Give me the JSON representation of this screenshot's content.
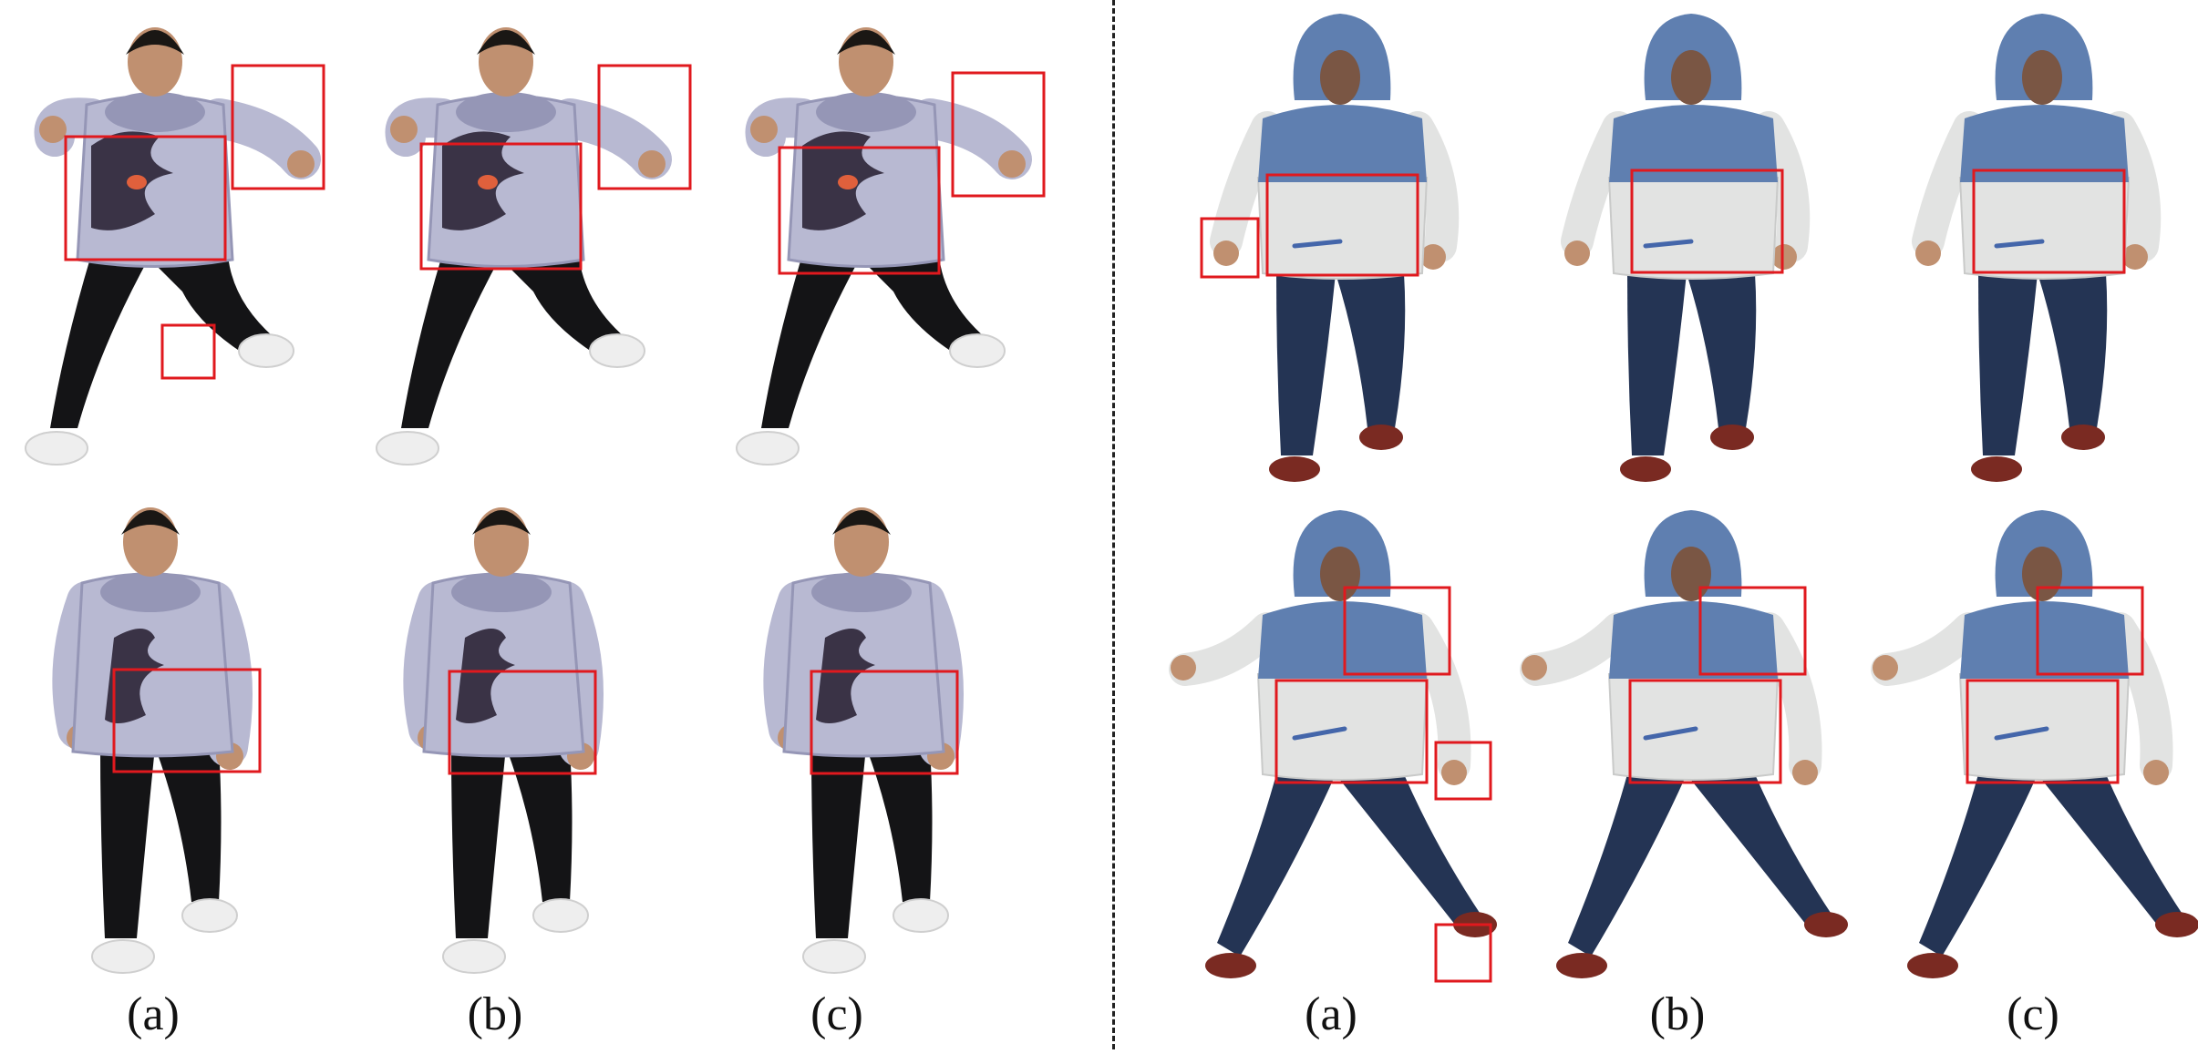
{
  "figure": {
    "groups": [
      {
        "subject": "light-gray-hoodie-with-dark-graphic",
        "captions": [
          "(a)",
          "(b)",
          "(c)"
        ]
      },
      {
        "subject": "blue-white-hoodie-with-jeans",
        "captions": [
          "(a)",
          "(b)",
          "(c)"
        ]
      }
    ],
    "colors": {
      "highlight_box": "#e0191e",
      "gray_hoodie": "#b8b9d2",
      "gray_hoodie_shade": "#9596b6",
      "graphic": "#3a3346",
      "graphic_eye": "#e0603c",
      "black_pants": "#141416",
      "skin": "#c09070",
      "hair": "#1a1714",
      "sneaker": "#eeeeee",
      "blue_hood": "#5f7fb0",
      "white_sweater": "#e2e3e2",
      "jeans": "#243454",
      "red_shoe": "#7a2a22"
    }
  }
}
